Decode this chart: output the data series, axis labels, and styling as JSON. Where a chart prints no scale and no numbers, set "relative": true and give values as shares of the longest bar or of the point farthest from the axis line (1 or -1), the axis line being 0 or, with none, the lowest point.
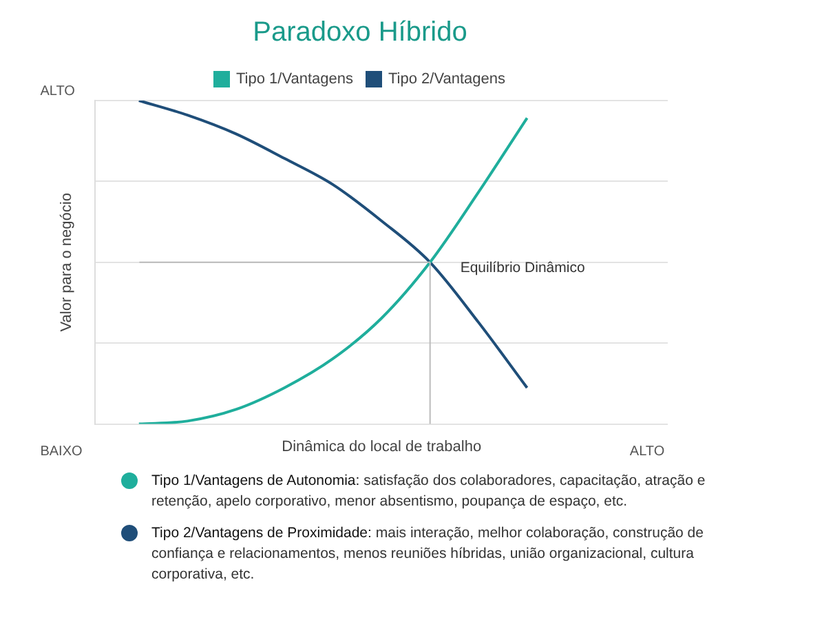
{
  "chart_data": {
    "type": "line",
    "title": "Paradoxo Híbrido",
    "xlabel": "Dinâmica do local de trabalho",
    "ylabel": "Valor para o negócio",
    "relative": true,
    "grid": "y",
    "legend": "top",
    "marker": "none",
    "line_style": "solid",
    "categories": [
      null,
      null,
      null,
      null,
      null,
      null,
      null,
      null,
      null
    ],
    "series": [
      {
        "name": "Tipo 1/Vantagens",
        "color": "#1fae9c",
        "values": [
          0,
          0.009,
          0.045,
          0.112,
          0.202,
          0.327,
          0.5,
          0.717,
          0.946
        ]
      },
      {
        "name": "Tipo 2/Vantagens",
        "color": "#1f4e79",
        "values": [
          1,
          0.955,
          0.897,
          0.821,
          0.74,
          0.628,
          0.5,
          0.314,
          0.112
        ]
      }
    ],
    "ref_lines": [
      {
        "axis": "y",
        "value": 0.5,
        "label": "Equilíbrio Dinâmico",
        "color": "#bbbbbb"
      }
    ],
    "annotations": [
      "ALTO",
      "BAIXO",
      "ALTO",
      "Tipo 1/Vantagens de Autonomia: satisfação dos colaboradores, capacitação, atração e retenção, apelo corporativo, menor absentismo, poupança de espaço, etc.",
      "Tipo 2/Vantagens de Proximidade: mais interação, melhor colaboração, construção de confiança e relacionamentos, menos reuniões híbridas, união organizacional, cultura corporativa, etc."
    ]
  }
}
